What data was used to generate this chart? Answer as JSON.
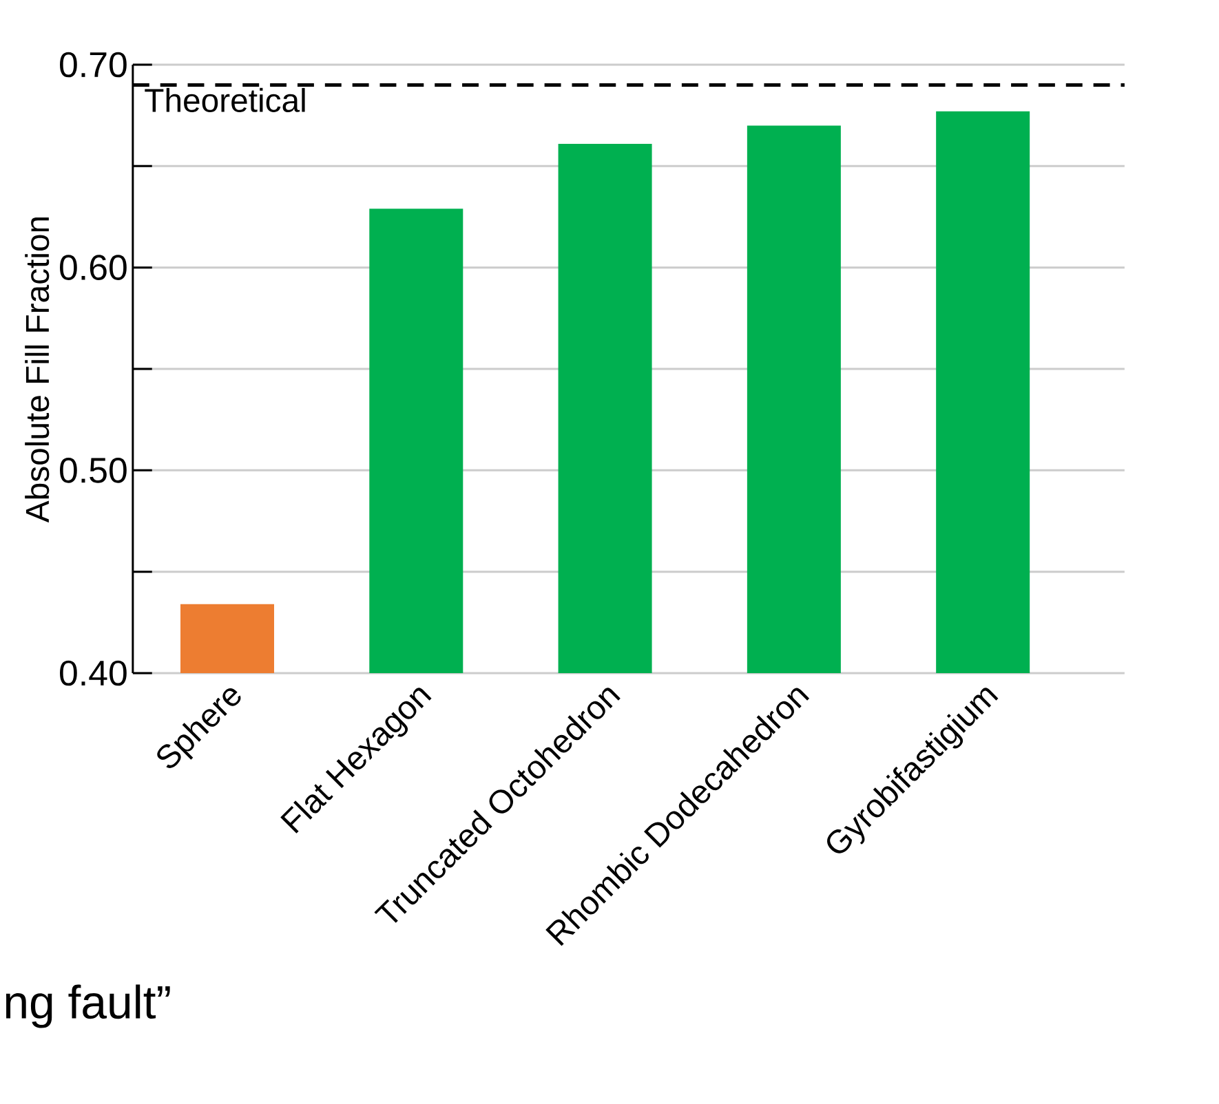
{
  "chart_data": {
    "type": "bar",
    "ylabel": "Absolute Fill Fraction",
    "categories": [
      "Sphere",
      "Flat Hexagon",
      "Truncated Octohedron",
      "Rhombic Dodecahedron",
      "Gyrobifastigium"
    ],
    "values": [
      0.434,
      0.629,
      0.661,
      0.67,
      0.677
    ],
    "colors": [
      "#ed7d31",
      "#00b050",
      "#00b050",
      "#00b050",
      "#00b050"
    ],
    "ylim": [
      0.4,
      0.7
    ],
    "yticks": [
      {
        "value": 0.4,
        "label": "0.40"
      },
      {
        "value": 0.45,
        "label": null
      },
      {
        "value": 0.5,
        "label": "0.50"
      },
      {
        "value": 0.55,
        "label": null
      },
      {
        "value": 0.6,
        "label": "0.60"
      },
      {
        "value": 0.65,
        "label": null
      },
      {
        "value": 0.7,
        "label": "0.70"
      }
    ],
    "grid": "y",
    "ref_lines": [
      {
        "axis": "y",
        "value": 0.69,
        "label": "Theoretical",
        "color": "#000000",
        "line_style": "dashed"
      }
    ],
    "annotations": [
      "ng fault”"
    ]
  }
}
